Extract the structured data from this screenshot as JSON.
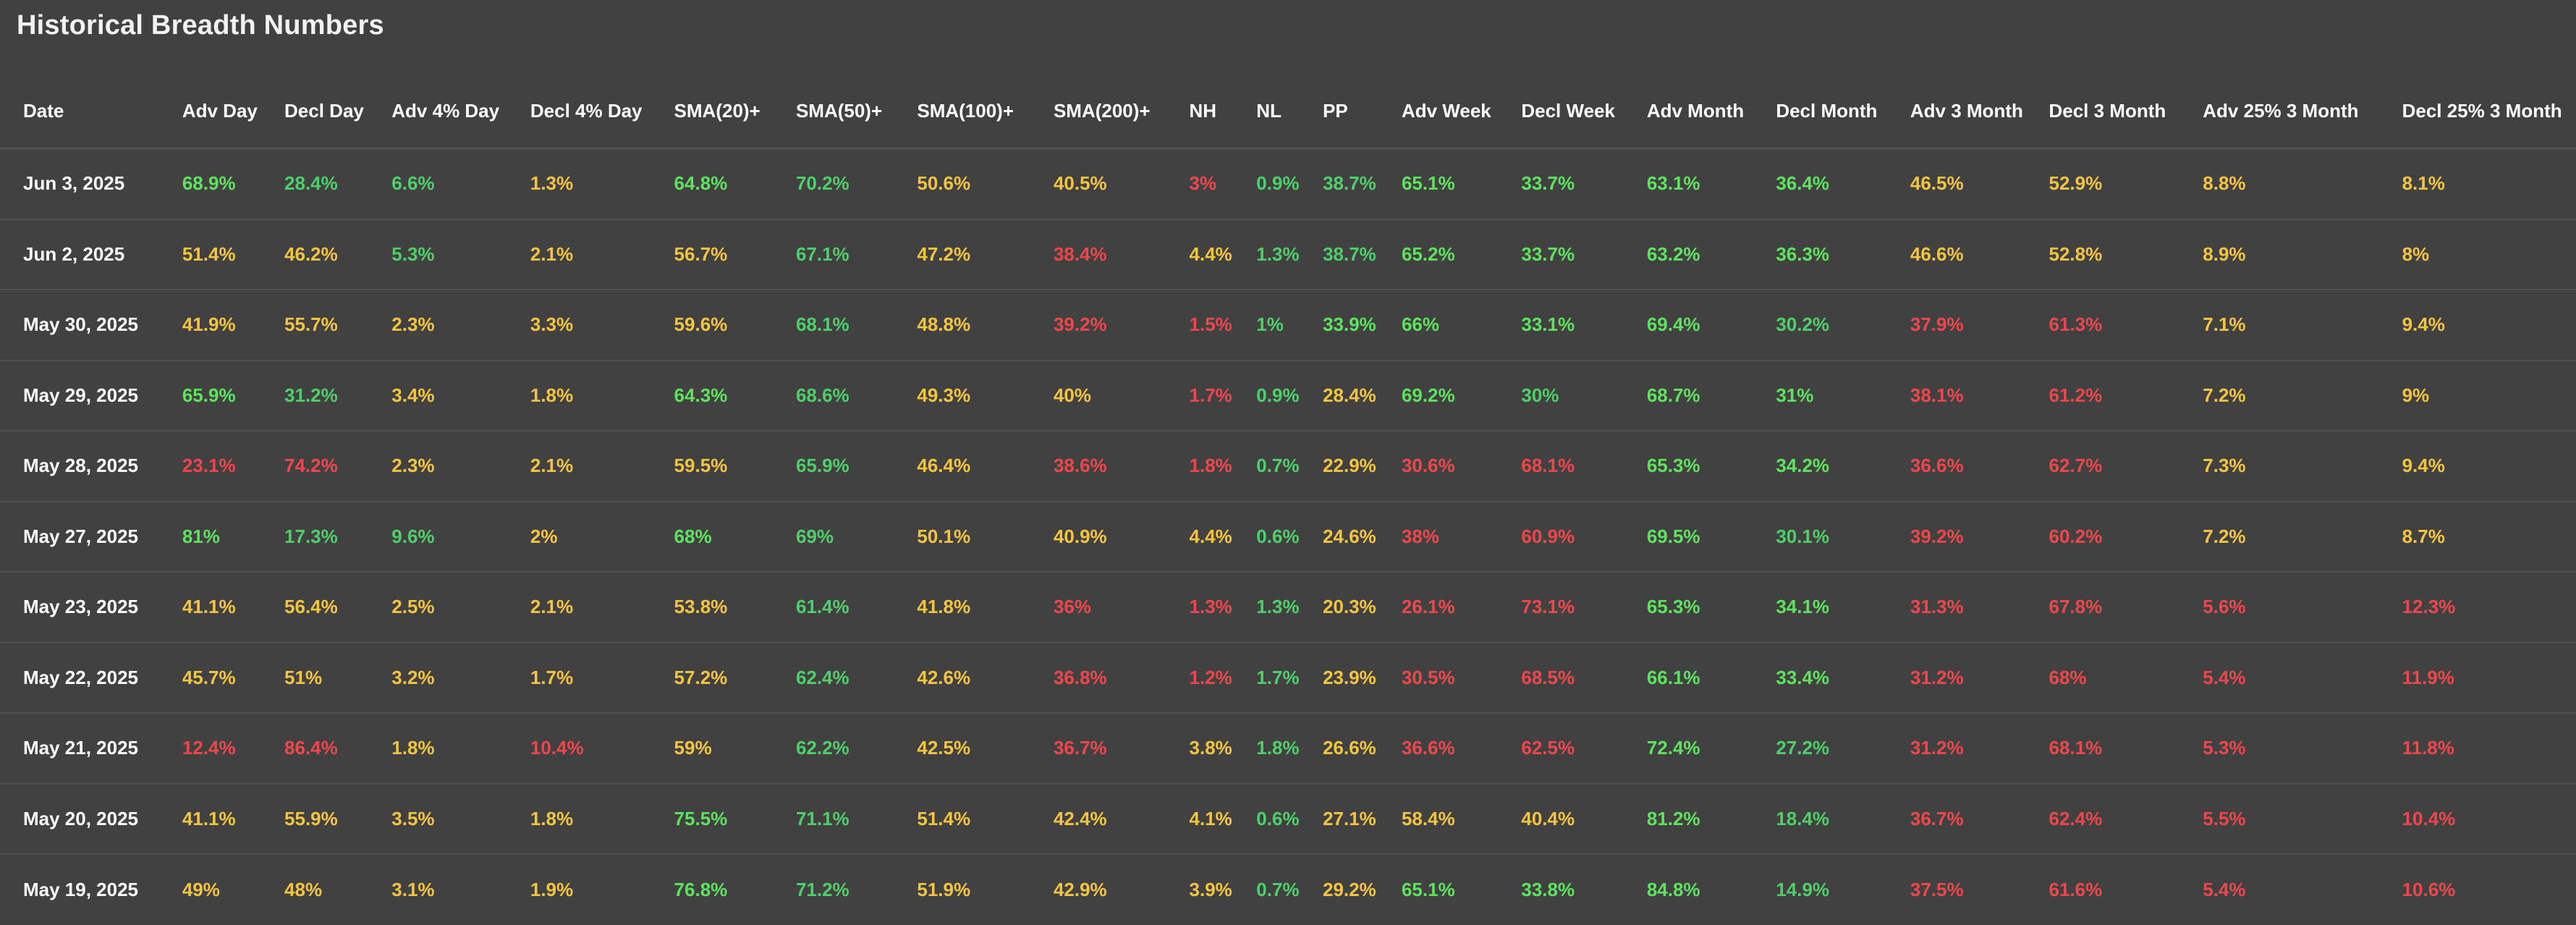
{
  "title": "Historical Breadth Numbers",
  "colors": {
    "background": "#414141",
    "green": "#5ee35e",
    "yellow": "#f5c542",
    "red": "#f0474d",
    "text": "#ffffff"
  },
  "columns": [
    "Date",
    "Adv Day",
    "Decl Day",
    "Adv 4% Day",
    "Decl 4% Day",
    "SMA(20)+",
    "SMA(50)+",
    "SMA(100)+",
    "SMA(200)+",
    "NH",
    "NL",
    "PP",
    "Adv Week",
    "Decl Week",
    "Adv Month",
    "Decl Month",
    "Adv 3 Month",
    "Decl 3 Month",
    "Adv 25% 3 Month",
    "Decl 25% 3 Month"
  ],
  "rows": [
    {
      "date": "Jun 3, 2025",
      "cells": [
        [
          "68.9%",
          "g"
        ],
        [
          "28.4%",
          "g2"
        ],
        [
          "6.6%",
          "g2"
        ],
        [
          "1.3%",
          "y"
        ],
        [
          "64.8%",
          "g"
        ],
        [
          "70.2%",
          "g2"
        ],
        [
          "50.6%",
          "y"
        ],
        [
          "40.5%",
          "y"
        ],
        [
          "3%",
          "r"
        ],
        [
          "0.9%",
          "g2"
        ],
        [
          "38.7%",
          "g2"
        ],
        [
          "65.1%",
          "g"
        ],
        [
          "33.7%",
          "g"
        ],
        [
          "63.1%",
          "g"
        ],
        [
          "36.4%",
          "g"
        ],
        [
          "46.5%",
          "y"
        ],
        [
          "52.9%",
          "y"
        ],
        [
          "8.8%",
          "y"
        ],
        [
          "8.1%",
          "y"
        ]
      ]
    },
    {
      "date": "Jun 2, 2025",
      "cells": [
        [
          "51.4%",
          "y"
        ],
        [
          "46.2%",
          "y"
        ],
        [
          "5.3%",
          "g2"
        ],
        [
          "2.1%",
          "y"
        ],
        [
          "56.7%",
          "y"
        ],
        [
          "67.1%",
          "g2"
        ],
        [
          "47.2%",
          "y"
        ],
        [
          "38.4%",
          "r"
        ],
        [
          "4.4%",
          "y"
        ],
        [
          "1.3%",
          "g2"
        ],
        [
          "38.7%",
          "g2"
        ],
        [
          "65.2%",
          "g"
        ],
        [
          "33.7%",
          "g"
        ],
        [
          "63.2%",
          "g"
        ],
        [
          "36.3%",
          "g"
        ],
        [
          "46.6%",
          "y"
        ],
        [
          "52.8%",
          "y"
        ],
        [
          "8.9%",
          "y"
        ],
        [
          "8%",
          "y"
        ]
      ]
    },
    {
      "date": "May 30, 2025",
      "cells": [
        [
          "41.9%",
          "y"
        ],
        [
          "55.7%",
          "y"
        ],
        [
          "2.3%",
          "y"
        ],
        [
          "3.3%",
          "y"
        ],
        [
          "59.6%",
          "y"
        ],
        [
          "68.1%",
          "g2"
        ],
        [
          "48.8%",
          "y"
        ],
        [
          "39.2%",
          "r"
        ],
        [
          "1.5%",
          "r"
        ],
        [
          "1%",
          "g2"
        ],
        [
          "33.9%",
          "g"
        ],
        [
          "66%",
          "g"
        ],
        [
          "33.1%",
          "g"
        ],
        [
          "69.4%",
          "g"
        ],
        [
          "30.2%",
          "g2"
        ],
        [
          "37.9%",
          "r"
        ],
        [
          "61.3%",
          "r"
        ],
        [
          "7.1%",
          "y"
        ],
        [
          "9.4%",
          "y"
        ]
      ]
    },
    {
      "date": "May 29, 2025",
      "cells": [
        [
          "65.9%",
          "g"
        ],
        [
          "31.2%",
          "g2"
        ],
        [
          "3.4%",
          "y"
        ],
        [
          "1.8%",
          "y"
        ],
        [
          "64.3%",
          "g"
        ],
        [
          "68.6%",
          "g2"
        ],
        [
          "49.3%",
          "y"
        ],
        [
          "40%",
          "y"
        ],
        [
          "1.7%",
          "r"
        ],
        [
          "0.9%",
          "g2"
        ],
        [
          "28.4%",
          "y"
        ],
        [
          "69.2%",
          "g"
        ],
        [
          "30%",
          "g2"
        ],
        [
          "68.7%",
          "g"
        ],
        [
          "31%",
          "g"
        ],
        [
          "38.1%",
          "r"
        ],
        [
          "61.2%",
          "r"
        ],
        [
          "7.2%",
          "y"
        ],
        [
          "9%",
          "y"
        ]
      ]
    },
    {
      "date": "May 28, 2025",
      "cells": [
        [
          "23.1%",
          "r"
        ],
        [
          "74.2%",
          "r"
        ],
        [
          "2.3%",
          "y"
        ],
        [
          "2.1%",
          "y"
        ],
        [
          "59.5%",
          "y"
        ],
        [
          "65.9%",
          "g2"
        ],
        [
          "46.4%",
          "y"
        ],
        [
          "38.6%",
          "r"
        ],
        [
          "1.8%",
          "r"
        ],
        [
          "0.7%",
          "g2"
        ],
        [
          "22.9%",
          "y"
        ],
        [
          "30.6%",
          "r"
        ],
        [
          "68.1%",
          "r"
        ],
        [
          "65.3%",
          "g"
        ],
        [
          "34.2%",
          "g"
        ],
        [
          "36.6%",
          "r"
        ],
        [
          "62.7%",
          "r"
        ],
        [
          "7.3%",
          "y"
        ],
        [
          "9.4%",
          "y"
        ]
      ]
    },
    {
      "date": "May 27, 2025",
      "cells": [
        [
          "81%",
          "g"
        ],
        [
          "17.3%",
          "g2"
        ],
        [
          "9.6%",
          "g2"
        ],
        [
          "2%",
          "y"
        ],
        [
          "68%",
          "g"
        ],
        [
          "69%",
          "g2"
        ],
        [
          "50.1%",
          "y"
        ],
        [
          "40.9%",
          "y"
        ],
        [
          "4.4%",
          "y"
        ],
        [
          "0.6%",
          "g2"
        ],
        [
          "24.6%",
          "y"
        ],
        [
          "38%",
          "r"
        ],
        [
          "60.9%",
          "r"
        ],
        [
          "69.5%",
          "g"
        ],
        [
          "30.1%",
          "g2"
        ],
        [
          "39.2%",
          "r"
        ],
        [
          "60.2%",
          "r"
        ],
        [
          "7.2%",
          "y"
        ],
        [
          "8.7%",
          "y"
        ]
      ]
    },
    {
      "date": "May 23, 2025",
      "cells": [
        [
          "41.1%",
          "y"
        ],
        [
          "56.4%",
          "y"
        ],
        [
          "2.5%",
          "y"
        ],
        [
          "2.1%",
          "y"
        ],
        [
          "53.8%",
          "y"
        ],
        [
          "61.4%",
          "g2"
        ],
        [
          "41.8%",
          "y"
        ],
        [
          "36%",
          "r"
        ],
        [
          "1.3%",
          "r"
        ],
        [
          "1.3%",
          "g2"
        ],
        [
          "20.3%",
          "y"
        ],
        [
          "26.1%",
          "r"
        ],
        [
          "73.1%",
          "r"
        ],
        [
          "65.3%",
          "g"
        ],
        [
          "34.1%",
          "g"
        ],
        [
          "31.3%",
          "r"
        ],
        [
          "67.8%",
          "r"
        ],
        [
          "5.6%",
          "r"
        ],
        [
          "12.3%",
          "r"
        ]
      ]
    },
    {
      "date": "May 22, 2025",
      "cells": [
        [
          "45.7%",
          "y"
        ],
        [
          "51%",
          "y"
        ],
        [
          "3.2%",
          "y"
        ],
        [
          "1.7%",
          "y"
        ],
        [
          "57.2%",
          "y"
        ],
        [
          "62.4%",
          "g2"
        ],
        [
          "42.6%",
          "y"
        ],
        [
          "36.8%",
          "r"
        ],
        [
          "1.2%",
          "r"
        ],
        [
          "1.7%",
          "g2"
        ],
        [
          "23.9%",
          "y"
        ],
        [
          "30.5%",
          "r"
        ],
        [
          "68.5%",
          "r"
        ],
        [
          "66.1%",
          "g"
        ],
        [
          "33.4%",
          "g"
        ],
        [
          "31.2%",
          "r"
        ],
        [
          "68%",
          "r"
        ],
        [
          "5.4%",
          "r"
        ],
        [
          "11.9%",
          "r"
        ]
      ]
    },
    {
      "date": "May 21, 2025",
      "cells": [
        [
          "12.4%",
          "r"
        ],
        [
          "86.4%",
          "r"
        ],
        [
          "1.8%",
          "y"
        ],
        [
          "10.4%",
          "r"
        ],
        [
          "59%",
          "y"
        ],
        [
          "62.2%",
          "g2"
        ],
        [
          "42.5%",
          "y"
        ],
        [
          "36.7%",
          "r"
        ],
        [
          "3.8%",
          "y"
        ],
        [
          "1.8%",
          "g2"
        ],
        [
          "26.6%",
          "y"
        ],
        [
          "36.6%",
          "r"
        ],
        [
          "62.5%",
          "r"
        ],
        [
          "72.4%",
          "g"
        ],
        [
          "27.2%",
          "g2"
        ],
        [
          "31.2%",
          "r"
        ],
        [
          "68.1%",
          "r"
        ],
        [
          "5.3%",
          "r"
        ],
        [
          "11.8%",
          "r"
        ]
      ]
    },
    {
      "date": "May 20, 2025",
      "cells": [
        [
          "41.1%",
          "y"
        ],
        [
          "55.9%",
          "y"
        ],
        [
          "3.5%",
          "y"
        ],
        [
          "1.8%",
          "y"
        ],
        [
          "75.5%",
          "g"
        ],
        [
          "71.1%",
          "g2"
        ],
        [
          "51.4%",
          "y"
        ],
        [
          "42.4%",
          "y"
        ],
        [
          "4.1%",
          "y"
        ],
        [
          "0.6%",
          "g2"
        ],
        [
          "27.1%",
          "y"
        ],
        [
          "58.4%",
          "y"
        ],
        [
          "40.4%",
          "y"
        ],
        [
          "81.2%",
          "g"
        ],
        [
          "18.4%",
          "g2"
        ],
        [
          "36.7%",
          "r"
        ],
        [
          "62.4%",
          "r"
        ],
        [
          "5.5%",
          "r"
        ],
        [
          "10.4%",
          "r"
        ]
      ]
    },
    {
      "date": "May 19, 2025",
      "cells": [
        [
          "49%",
          "y"
        ],
        [
          "48%",
          "y"
        ],
        [
          "3.1%",
          "y"
        ],
        [
          "1.9%",
          "y"
        ],
        [
          "76.8%",
          "g"
        ],
        [
          "71.2%",
          "g2"
        ],
        [
          "51.9%",
          "y"
        ],
        [
          "42.9%",
          "y"
        ],
        [
          "3.9%",
          "y"
        ],
        [
          "0.7%",
          "g2"
        ],
        [
          "29.2%",
          "y"
        ],
        [
          "65.1%",
          "g"
        ],
        [
          "33.8%",
          "g"
        ],
        [
          "84.8%",
          "g"
        ],
        [
          "14.9%",
          "g2"
        ],
        [
          "37.5%",
          "r"
        ],
        [
          "61.6%",
          "r"
        ],
        [
          "5.4%",
          "r"
        ],
        [
          "10.6%",
          "r"
        ]
      ]
    }
  ]
}
